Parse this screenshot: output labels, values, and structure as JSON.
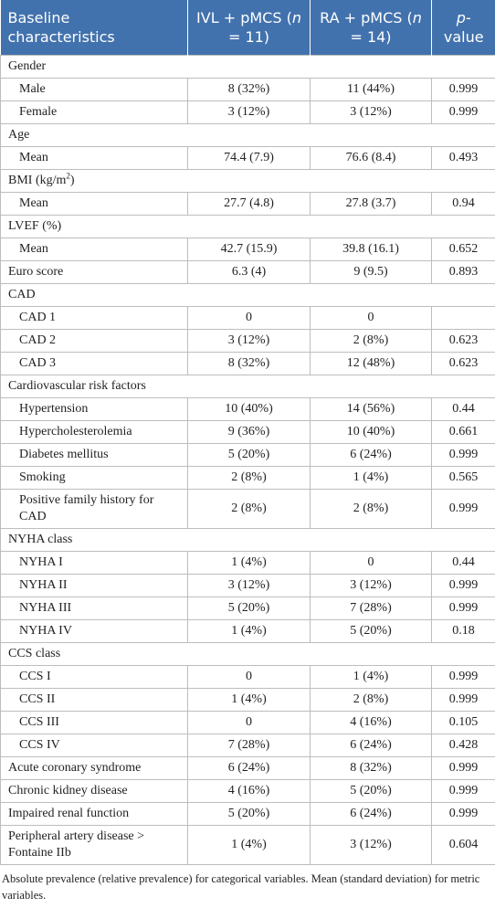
{
  "table": {
    "header": [
      [
        {
          "text": "Baseline characteristics"
        }
      ],
      [
        {
          "text": "IVL + pMCS ("
        },
        {
          "text": "n",
          "style": "italic"
        },
        {
          "text": " = 11)"
        }
      ],
      [
        {
          "text": "RA + pMCS ("
        },
        {
          "text": "n",
          "style": "italic"
        },
        {
          "text": " = 14)"
        }
      ],
      [
        {
          "text": "p",
          "style": "italic"
        },
        {
          "text": "-value"
        }
      ]
    ],
    "rows": [
      {
        "label": [
          {
            "text": "Gender"
          }
        ],
        "items": [
          {
            "label": "Male",
            "cells": [
              "8 (32%)",
              "11 (44%)",
              "0.999"
            ]
          },
          {
            "label": "Female",
            "cells": [
              "3 (12%)",
              "3 (12%)",
              "0.999"
            ]
          }
        ]
      },
      {
        "label": [
          {
            "text": "Age"
          }
        ],
        "items": [
          {
            "label": "Mean",
            "cells": [
              "74.4 (7.9)",
              "76.6 (8.4)",
              "0.493"
            ]
          }
        ]
      },
      {
        "label": [
          {
            "text": "BMI (kg/m"
          },
          {
            "text": "2",
            "style": "sup"
          },
          {
            "text": ")"
          }
        ],
        "items": [
          {
            "label": "Mean",
            "cells": [
              "27.7 (4.8)",
              "27.8 (3.7)",
              "0.94"
            ]
          }
        ]
      },
      {
        "label": [
          {
            "text": "LVEF (%)"
          }
        ],
        "items": [
          {
            "label": "Mean",
            "cells": [
              "42.7 (15.9)",
              "39.8 (16.1)",
              "0.652"
            ]
          }
        ]
      },
      {
        "label": [
          {
            "text": "Euro score"
          }
        ],
        "cells": [
          "6.3 (4)",
          "9 (9.5)",
          "0.893"
        ]
      },
      {
        "label": [
          {
            "text": "CAD"
          }
        ],
        "items": [
          {
            "label": "CAD 1",
            "cells": [
              "0",
              "0",
              null
            ]
          },
          {
            "label": "CAD 2",
            "cells": [
              "3 (12%)",
              "2 (8%)",
              "0.623"
            ]
          },
          {
            "label": "CAD 3",
            "cells": [
              "8 (32%)",
              "12 (48%)",
              "0.623"
            ]
          }
        ]
      },
      {
        "label": [
          {
            "text": "Cardiovascular risk factors"
          }
        ],
        "items": [
          {
            "label": "Hypertension",
            "cells": [
              "10 (40%)",
              "14 (56%)",
              "0.44"
            ]
          },
          {
            "label": "Hypercholesterolemia",
            "cells": [
              "9 (36%)",
              "10 (40%)",
              "0.661"
            ]
          },
          {
            "label": "Diabetes mellitus",
            "cells": [
              "5 (20%)",
              "6 (24%)",
              "0.999"
            ]
          },
          {
            "label": "Smoking",
            "cells": [
              "2 (8%)",
              "1 (4%)",
              "0.565"
            ]
          },
          {
            "label": "Positive family history for CAD",
            "cells": [
              "2 (8%)",
              "2 (8%)",
              "0.999"
            ]
          }
        ]
      },
      {
        "label": [
          {
            "text": "NYHA class"
          }
        ],
        "items": [
          {
            "label": "NYHA I",
            "cells": [
              "1 (4%)",
              "0",
              "0.44"
            ]
          },
          {
            "label": "NYHA II",
            "cells": [
              "3 (12%)",
              "3 (12%)",
              "0.999"
            ]
          },
          {
            "label": "NYHA III",
            "cells": [
              "5 (20%)",
              "7 (28%)",
              "0.999"
            ]
          },
          {
            "label": "NYHA IV",
            "cells": [
              "1 (4%)",
              "5 (20%)",
              "0.18"
            ]
          }
        ]
      },
      {
        "label": [
          {
            "text": "CCS class"
          }
        ],
        "items": [
          {
            "label": "CCS I",
            "cells": [
              "0",
              "1 (4%)",
              "0.999"
            ]
          },
          {
            "label": "CCS II",
            "cells": [
              "1 (4%)",
              "2 (8%)",
              "0.999"
            ]
          },
          {
            "label": "CCS III",
            "cells": [
              "0",
              "4 (16%)",
              "0.105"
            ]
          },
          {
            "label": "CCS IV",
            "cells": [
              "7 (28%)",
              "6 (24%)",
              "0.428"
            ]
          }
        ]
      },
      {
        "label": [
          {
            "text": "Acute coronary syndrome"
          }
        ],
        "cells": [
          "6 (24%)",
          "8 (32%)",
          "0.999"
        ]
      },
      {
        "label": [
          {
            "text": "Chronic kidney disease"
          }
        ],
        "cells": [
          "4 (16%)",
          "5 (20%)",
          "0.999"
        ]
      },
      {
        "label": [
          {
            "text": "Impaired renal function"
          }
        ],
        "cells": [
          "5 (20%)",
          "6 (24%)",
          "0.999"
        ]
      },
      {
        "label": [
          {
            "text": "Peripheral artery disease > Fontaine IIb"
          }
        ],
        "cells": [
          "1 (4%)",
          "3 (12%)",
          "0.604"
        ]
      }
    ],
    "footnote": "Absolute prevalence (relative prevalence) for categorical variables. Mean (standard deviation) for metric variables."
  }
}
